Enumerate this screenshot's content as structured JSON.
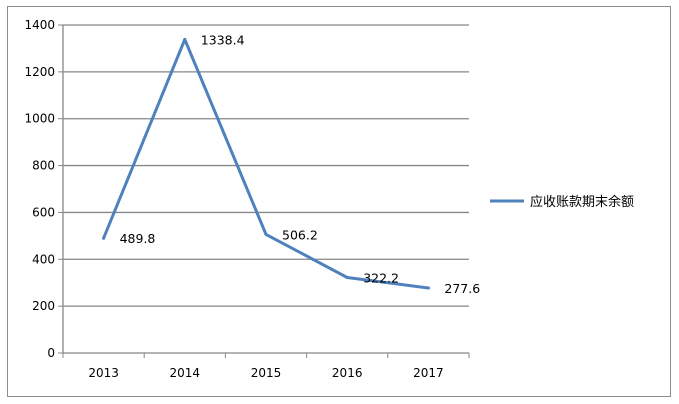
{
  "chart_data": {
    "type": "line",
    "title": "",
    "xlabel": "",
    "ylabel": "",
    "categories": [
      "2013",
      "2014",
      "2015",
      "2016",
      "2017"
    ],
    "ylim": [
      0,
      1400
    ],
    "yticks": [
      0,
      200,
      400,
      600,
      800,
      1000,
      1200,
      1400
    ],
    "grid": true,
    "legend_position": "right",
    "series": [
      {
        "name": "应收账款期末余额",
        "values": [
          489.8,
          1338.4,
          506.2,
          322.2,
          277.6
        ],
        "labels": [
          "489.8",
          "1338.4",
          "506.2",
          "322.2",
          "277.6"
        ],
        "color": "#4f81bd"
      }
    ]
  }
}
